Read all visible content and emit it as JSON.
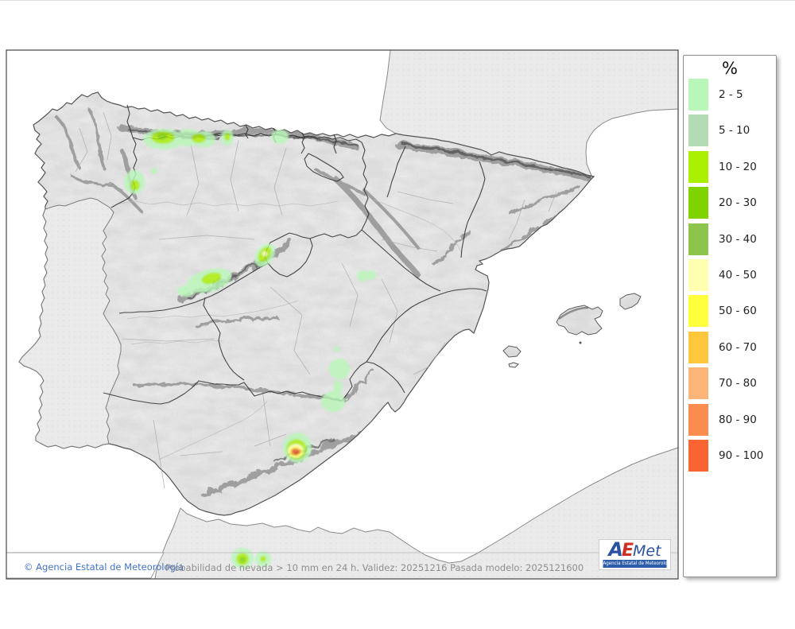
{
  "legend": {
    "title": "%",
    "entries": [
      {
        "label": "2 - 5",
        "color": "#b9f7b9"
      },
      {
        "label": "5 - 10",
        "color": "#b4dcb4"
      },
      {
        "label": "10 - 20",
        "color": "#aaee00"
      },
      {
        "label": "20 - 30",
        "color": "#7fd400"
      },
      {
        "label": "30 - 40",
        "color": "#8cc44c"
      },
      {
        "label": "40 - 50",
        "color": "#ffffb0"
      },
      {
        "label": "50 - 60",
        "color": "#ffff3c"
      },
      {
        "label": "60 - 70",
        "color": "#ffc83c"
      },
      {
        "label": "70 - 80",
        "color": "#fcb478"
      },
      {
        "label": "80 - 90",
        "color": "#fb8c50"
      },
      {
        "label": "90 - 100",
        "color": "#fa6432"
      }
    ]
  },
  "footer": {
    "copyright": "© Agencia Estatal de Meteorología",
    "description": "Probabilidad de nevada > 10 mm en 24 h. Validez: 20251216 Pasada modelo: 2025121600"
  },
  "logo": {
    "a": "A",
    "e": "E",
    "met": "Met",
    "subtitle": "Agencia Estatal de Meteorología"
  }
}
